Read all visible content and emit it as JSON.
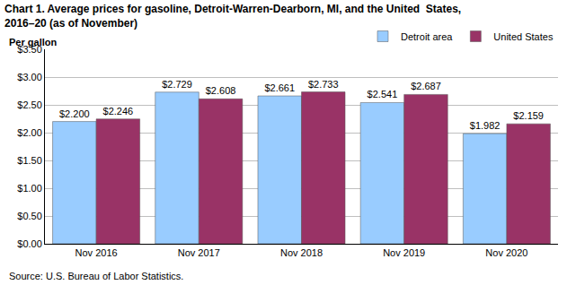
{
  "chart_data": {
    "type": "bar",
    "title": [
      "Chart 1. Average prices for gasoline, Detroit-Warren-Dearborn, MI, and the United  States,",
      "2016–20 (as of November)"
    ],
    "y_label": "Per gallon",
    "source": "Source: U.S. Bureau of Labor Statistics.",
    "categories": [
      "Nov 2016",
      "Nov 2017",
      "Nov 2018",
      "Nov 2019",
      "Nov 2020"
    ],
    "series": [
      {
        "name": "Detroit area",
        "color": "#99ccff",
        "values": [
          2.2,
          2.729,
          2.661,
          2.541,
          1.982
        ],
        "value_labels": [
          "$2.200",
          "$2.729",
          "$2.661",
          "$2.541",
          "$1.982"
        ]
      },
      {
        "name": "United States",
        "color": "#993366",
        "values": [
          2.246,
          2.608,
          2.733,
          2.687,
          2.159
        ],
        "value_labels": [
          "$2.246",
          "$2.608",
          "$2.733",
          "$2.687",
          "$2.159"
        ]
      }
    ],
    "ylim": [
      0,
      3.5
    ],
    "yticks": [
      {
        "value": 0,
        "label": "$0.00"
      },
      {
        "value": 0.5,
        "label": "$0.50"
      },
      {
        "value": 1,
        "label": "$1.00"
      },
      {
        "value": 1.5,
        "label": "$1.50"
      },
      {
        "value": 2,
        "label": "$2.00"
      },
      {
        "value": 2.5,
        "label": "$2.50"
      },
      {
        "value": 3,
        "label": "$3.00"
      },
      {
        "value": 3.5,
        "label": "$3.50"
      }
    ],
    "grid": true,
    "legend": "top-right",
    "data_labels": true
  }
}
